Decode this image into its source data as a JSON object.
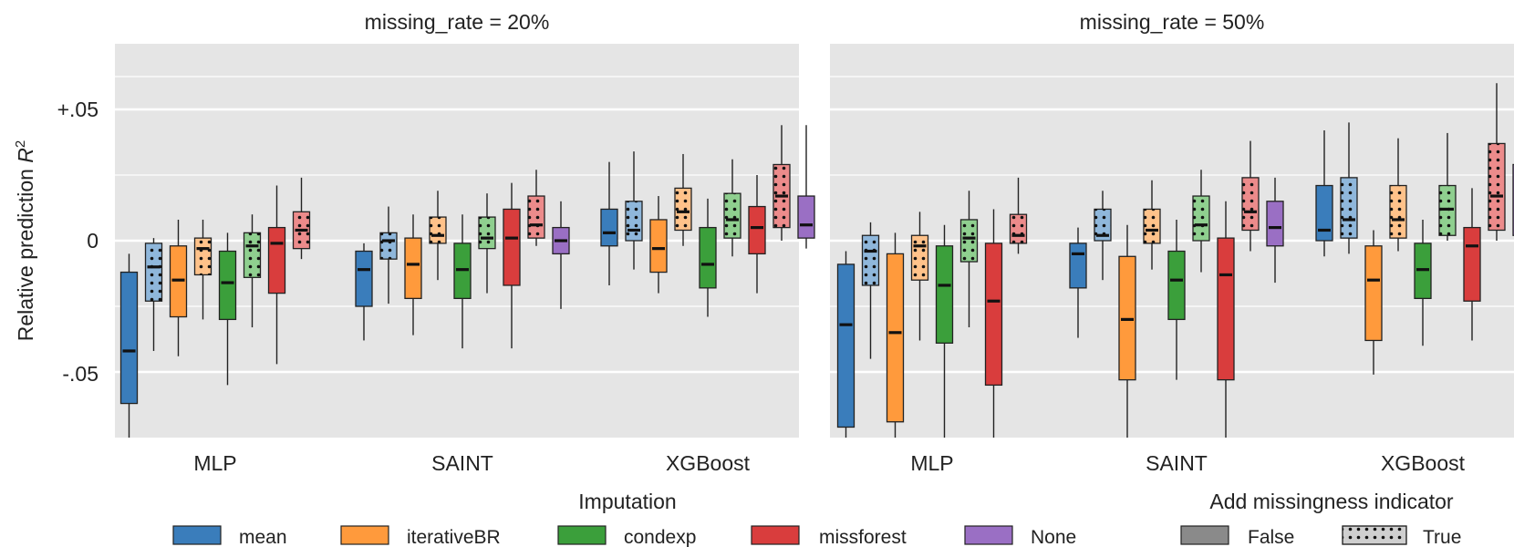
{
  "chart_data": {
    "type": "box",
    "ylabel_main": "Relative prediction ",
    "ylabel_symbol": "R",
    "ylabel_sup": "2",
    "ylim": [
      -0.075,
      0.075
    ],
    "yticks": [
      {
        "value": 0.05,
        "label": "+.05"
      },
      {
        "value": 0,
        "label": "0"
      },
      {
        "value": -0.05,
        "label": "-.05"
      }
    ],
    "categories": [
      "MLP",
      "SAINT",
      "XGBoost"
    ],
    "panels": [
      {
        "title": "missing_rate = 20%",
        "groups": [
          {
            "category": "MLP",
            "boxes": [
              {
                "imputation": "mean",
                "indicator": false,
                "min": -0.075,
                "q1": -0.062,
                "median": -0.042,
                "q3": -0.012,
                "max": -0.005
              },
              {
                "imputation": "mean",
                "indicator": true,
                "min": -0.042,
                "q1": -0.023,
                "median": -0.01,
                "q3": -0.001,
                "max": 0.001
              },
              {
                "imputation": "iterativeBR",
                "indicator": false,
                "min": -0.044,
                "q1": -0.029,
                "median": -0.015,
                "q3": -0.002,
                "max": 0.008
              },
              {
                "imputation": "iterativeBR",
                "indicator": true,
                "min": -0.03,
                "q1": -0.013,
                "median": -0.003,
                "q3": 0.001,
                "max": 0.008
              },
              {
                "imputation": "condexp",
                "indicator": false,
                "min": -0.055,
                "q1": -0.03,
                "median": -0.016,
                "q3": -0.004,
                "max": 0.003
              },
              {
                "imputation": "condexp",
                "indicator": true,
                "min": -0.033,
                "q1": -0.014,
                "median": -0.002,
                "q3": 0.003,
                "max": 0.01
              },
              {
                "imputation": "missforest",
                "indicator": false,
                "min": -0.047,
                "q1": -0.02,
                "median": -0.001,
                "q3": 0.005,
                "max": 0.021
              },
              {
                "imputation": "missforest",
                "indicator": true,
                "min": -0.007,
                "q1": -0.003,
                "median": 0.004,
                "q3": 0.011,
                "max": 0.024
              }
            ]
          },
          {
            "category": "SAINT",
            "boxes": [
              {
                "imputation": "mean",
                "indicator": false,
                "min": -0.038,
                "q1": -0.025,
                "median": -0.011,
                "q3": -0.004,
                "max": -0.001
              },
              {
                "imputation": "mean",
                "indicator": true,
                "min": -0.024,
                "q1": -0.007,
                "median": 0.0,
                "q3": 0.003,
                "max": 0.013
              },
              {
                "imputation": "iterativeBR",
                "indicator": false,
                "min": -0.036,
                "q1": -0.022,
                "median": -0.009,
                "q3": 0.001,
                "max": 0.01
              },
              {
                "imputation": "iterativeBR",
                "indicator": true,
                "min": -0.015,
                "q1": -0.001,
                "median": 0.002,
                "q3": 0.009,
                "max": 0.019
              },
              {
                "imputation": "condexp",
                "indicator": false,
                "min": -0.041,
                "q1": -0.022,
                "median": -0.011,
                "q3": -0.001,
                "max": 0.01
              },
              {
                "imputation": "condexp",
                "indicator": true,
                "min": -0.02,
                "q1": -0.003,
                "median": 0.001,
                "q3": 0.009,
                "max": 0.018
              },
              {
                "imputation": "missforest",
                "indicator": false,
                "min": -0.041,
                "q1": -0.017,
                "median": 0.001,
                "q3": 0.012,
                "max": 0.022
              },
              {
                "imputation": "missforest",
                "indicator": true,
                "min": -0.002,
                "q1": 0.001,
                "median": 0.006,
                "q3": 0.017,
                "max": 0.027
              },
              {
                "imputation": "None",
                "indicator": false,
                "min": -0.026,
                "q1": -0.005,
                "median": 0.0,
                "q3": 0.005,
                "max": 0.015
              }
            ]
          },
          {
            "category": "XGBoost",
            "boxes": [
              {
                "imputation": "mean",
                "indicator": false,
                "min": -0.017,
                "q1": -0.002,
                "median": 0.003,
                "q3": 0.012,
                "max": 0.03
              },
              {
                "imputation": "mean",
                "indicator": true,
                "min": -0.011,
                "q1": 0.0,
                "median": 0.004,
                "q3": 0.015,
                "max": 0.034
              },
              {
                "imputation": "iterativeBR",
                "indicator": false,
                "min": -0.02,
                "q1": -0.012,
                "median": -0.003,
                "q3": 0.008,
                "max": 0.017
              },
              {
                "imputation": "iterativeBR",
                "indicator": true,
                "min": -0.002,
                "q1": 0.004,
                "median": 0.011,
                "q3": 0.02,
                "max": 0.033
              },
              {
                "imputation": "condexp",
                "indicator": false,
                "min": -0.029,
                "q1": -0.018,
                "median": -0.009,
                "q3": 0.005,
                "max": 0.016
              },
              {
                "imputation": "condexp",
                "indicator": true,
                "min": -0.006,
                "q1": 0.001,
                "median": 0.008,
                "q3": 0.018,
                "max": 0.031
              },
              {
                "imputation": "missforest",
                "indicator": false,
                "min": -0.02,
                "q1": -0.005,
                "median": 0.005,
                "q3": 0.013,
                "max": 0.025
              },
              {
                "imputation": "missforest",
                "indicator": true,
                "min": 0.0,
                "q1": 0.005,
                "median": 0.017,
                "q3": 0.029,
                "max": 0.044
              },
              {
                "imputation": "None",
                "indicator": false,
                "min": -0.003,
                "q1": 0.001,
                "median": 0.006,
                "q3": 0.017,
                "max": 0.044
              }
            ]
          }
        ]
      },
      {
        "title": "missing_rate = 50%",
        "groups": [
          {
            "category": "MLP",
            "boxes": [
              {
                "imputation": "mean",
                "indicator": false,
                "min": -0.075,
                "q1": -0.071,
                "median": -0.032,
                "q3": -0.009,
                "max": -0.004
              },
              {
                "imputation": "mean",
                "indicator": true,
                "min": -0.045,
                "q1": -0.017,
                "median": -0.004,
                "q3": 0.002,
                "max": 0.007
              },
              {
                "imputation": "iterativeBR",
                "indicator": false,
                "min": -0.075,
                "q1": -0.069,
                "median": -0.035,
                "q3": -0.005,
                "max": 0.003
              },
              {
                "imputation": "iterativeBR",
                "indicator": true,
                "min": -0.038,
                "q1": -0.015,
                "median": -0.002,
                "q3": 0.002,
                "max": 0.011
              },
              {
                "imputation": "condexp",
                "indicator": false,
                "min": -0.075,
                "q1": -0.039,
                "median": -0.017,
                "q3": -0.002,
                "max": 0.006
              },
              {
                "imputation": "condexp",
                "indicator": true,
                "min": -0.033,
                "q1": -0.008,
                "median": 0.001,
                "q3": 0.008,
                "max": 0.019
              },
              {
                "imputation": "missforest",
                "indicator": false,
                "min": -0.075,
                "q1": -0.055,
                "median": -0.023,
                "q3": -0.001,
                "max": 0.012
              },
              {
                "imputation": "missforest",
                "indicator": true,
                "min": -0.005,
                "q1": -0.001,
                "median": 0.002,
                "q3": 0.01,
                "max": 0.024
              }
            ]
          },
          {
            "category": "SAINT",
            "boxes": [
              {
                "imputation": "mean",
                "indicator": false,
                "min": -0.037,
                "q1": -0.018,
                "median": -0.005,
                "q3": -0.001,
                "max": 0.005
              },
              {
                "imputation": "mean",
                "indicator": true,
                "min": -0.015,
                "q1": 0.0,
                "median": 0.002,
                "q3": 0.012,
                "max": 0.019
              },
              {
                "imputation": "iterativeBR",
                "indicator": false,
                "min": -0.075,
                "q1": -0.053,
                "median": -0.03,
                "q3": -0.006,
                "max": 0.006
              },
              {
                "imputation": "iterativeBR",
                "indicator": true,
                "min": -0.011,
                "q1": -0.001,
                "median": 0.004,
                "q3": 0.012,
                "max": 0.023
              },
              {
                "imputation": "condexp",
                "indicator": false,
                "min": -0.053,
                "q1": -0.03,
                "median": -0.015,
                "q3": -0.004,
                "max": 0.008
              },
              {
                "imputation": "condexp",
                "indicator": true,
                "min": -0.012,
                "q1": 0.0,
                "median": 0.006,
                "q3": 0.017,
                "max": 0.027
              },
              {
                "imputation": "missforest",
                "indicator": false,
                "min": -0.075,
                "q1": -0.053,
                "median": -0.013,
                "q3": 0.001,
                "max": 0.015
              },
              {
                "imputation": "missforest",
                "indicator": true,
                "min": -0.004,
                "q1": 0.004,
                "median": 0.011,
                "q3": 0.024,
                "max": 0.038
              },
              {
                "imputation": "None",
                "indicator": false,
                "min": -0.016,
                "q1": -0.002,
                "median": 0.005,
                "q3": 0.015,
                "max": 0.024
              }
            ]
          },
          {
            "category": "XGBoost",
            "boxes": [
              {
                "imputation": "mean",
                "indicator": false,
                "min": -0.006,
                "q1": 0.0,
                "median": 0.004,
                "q3": 0.021,
                "max": 0.042
              },
              {
                "imputation": "mean",
                "indicator": true,
                "min": -0.005,
                "q1": 0.001,
                "median": 0.008,
                "q3": 0.024,
                "max": 0.045
              },
              {
                "imputation": "iterativeBR",
                "indicator": false,
                "min": -0.051,
                "q1": -0.038,
                "median": -0.015,
                "q3": -0.002,
                "max": 0.004
              },
              {
                "imputation": "iterativeBR",
                "indicator": true,
                "min": -0.004,
                "q1": 0.001,
                "median": 0.008,
                "q3": 0.021,
                "max": 0.039
              },
              {
                "imputation": "condexp",
                "indicator": false,
                "min": -0.04,
                "q1": -0.022,
                "median": -0.011,
                "q3": -0.001,
                "max": 0.008
              },
              {
                "imputation": "condexp",
                "indicator": true,
                "min": 0.0,
                "q1": 0.002,
                "median": 0.012,
                "q3": 0.021,
                "max": 0.041
              },
              {
                "imputation": "missforest",
                "indicator": false,
                "min": -0.038,
                "q1": -0.023,
                "median": -0.002,
                "q3": 0.005,
                "max": 0.02
              },
              {
                "imputation": "missforest",
                "indicator": true,
                "min": 0.0,
                "q1": 0.004,
                "median": 0.017,
                "q3": 0.037,
                "max": 0.06
              },
              {
                "imputation": "None",
                "indicator": false,
                "min": 0.001,
                "q1": 0.002,
                "median": 0.012,
                "q3": 0.029,
                "max": 0.062
              }
            ]
          }
        ]
      }
    ],
    "legend": {
      "imputation_title": "Imputation",
      "imputation": [
        {
          "name": "mean",
          "color": "#3a7dbb"
        },
        {
          "name": "iterativeBR",
          "color": "#ff9a3c"
        },
        {
          "name": "condexp",
          "color": "#3b9f3b"
        },
        {
          "name": "missforest",
          "color": "#d93d3d"
        },
        {
          "name": "None",
          "color": "#9a6fc4"
        }
      ],
      "indicator_title": "Add missingness indicator",
      "indicator": [
        {
          "name": "False",
          "hatched": false
        },
        {
          "name": "True",
          "hatched": true
        }
      ]
    },
    "colors": {
      "mean_light": "#8fb7db",
      "iterativeBR_light": "#ffc28a",
      "condexp_light": "#8fcf8f",
      "missforest_light": "#ec8b8b",
      "panel_bg": "#e5e5e5",
      "grid": "#ffffff"
    },
    "grid": true,
    "legend_position": "bottom"
  }
}
